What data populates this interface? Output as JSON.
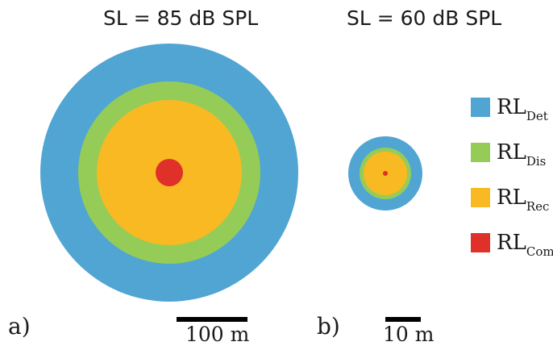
{
  "panels": [
    {
      "label": "a)",
      "title": "SL = 85 dB SPL",
      "scale_bar_label": "100 m"
    },
    {
      "label": "b)",
      "title": "SL = 60 dB SPL",
      "scale_bar_label": "10 m"
    }
  ],
  "legend": [
    {
      "main": "RL",
      "sub": "Det",
      "color": "#50a5d3"
    },
    {
      "main": "RL",
      "sub": "Dis",
      "color": "#95cc58"
    },
    {
      "main": "RL",
      "sub": "Rec",
      "color": "#f9b922"
    },
    {
      "main": "RL",
      "sub": "Com",
      "color": "#e0302a"
    }
  ]
}
